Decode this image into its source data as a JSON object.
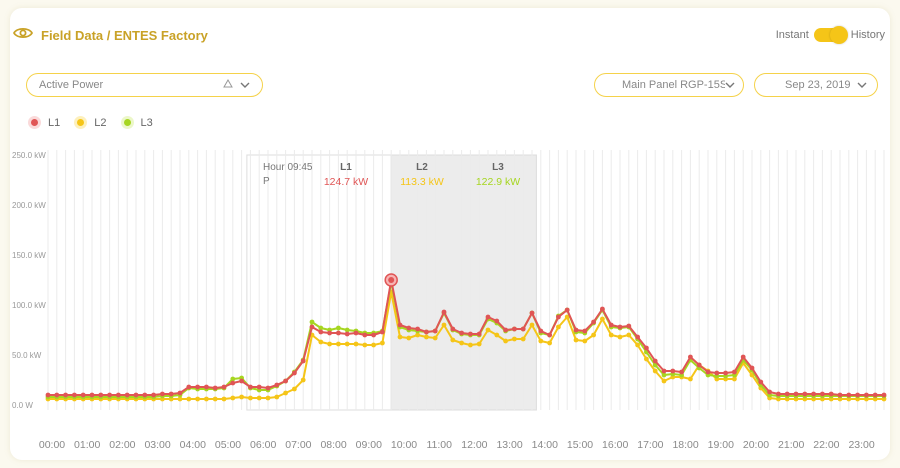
{
  "header": {
    "title": "Field Data / ENTES Factory",
    "toggle_left": "Instant",
    "toggle_right": "History"
  },
  "filters": {
    "measurement": "Active Power",
    "panel": "Main Panel RGP-15S",
    "date": "Sep 23, 2019"
  },
  "legend": [
    {
      "label": "L1",
      "color": "#e05555"
    },
    {
      "label": "L2",
      "color": "#f5c518"
    },
    {
      "label": "L3",
      "color": "#a6d620"
    }
  ],
  "tooltip": {
    "hour_label": "Hour 09:45",
    "row_label": "P",
    "cols": [
      {
        "name": "L1",
        "value": "124.7 kW",
        "color": "#e05555"
      },
      {
        "name": "L2",
        "value": "113.3 kW",
        "color": "#f5c518"
      },
      {
        "name": "L3",
        "value": "122.9 kW",
        "color": "#a6d620"
      }
    ]
  },
  "chart_data": {
    "type": "line",
    "y_tick_labels": [
      "0.0 W",
      "50.0 kW",
      "100.0 kW",
      "150.0 kW",
      "200.0 kW",
      "250.0 kW"
    ],
    "y_ticks": [
      0,
      50,
      100,
      150,
      200,
      250
    ],
    "ylim": [
      0,
      250
    ],
    "x_tick_labels": [
      "00:00",
      "01:00",
      "02:00",
      "03:00",
      "04:00",
      "05:00",
      "06:00",
      "07:00",
      "08:00",
      "09:00",
      "10:00",
      "11:00",
      "12:00",
      "13:00",
      "14:00",
      "15:00",
      "16:00",
      "17:00",
      "18:00",
      "19:00",
      "20:00",
      "21:00",
      "22:00",
      "23:00"
    ],
    "x_step_minutes": 15,
    "highlight_index": 39,
    "grid": true,
    "series": [
      {
        "name": "L1",
        "color": "#e05555",
        "values": [
          10,
          10,
          10,
          10,
          10,
          10,
          10,
          10,
          10,
          10,
          10,
          10,
          10,
          11,
          11,
          12,
          18,
          18,
          18,
          17,
          18,
          22,
          24,
          18,
          18,
          17,
          20,
          24,
          32,
          44,
          78,
          73,
          72,
          72,
          71,
          72,
          70,
          70,
          73,
          125,
          80,
          77,
          76,
          73,
          74,
          93,
          76,
          72,
          71,
          71,
          88,
          84,
          75,
          76,
          76,
          92,
          74,
          70,
          88,
          95,
          75,
          74,
          83,
          96,
          80,
          78,
          79,
          68,
          57,
          44,
          34,
          34,
          33,
          48,
          40,
          33,
          32,
          32,
          33,
          48,
          37,
          23,
          13,
          11,
          11,
          11,
          11,
          11,
          11,
          11,
          10,
          10,
          10,
          10,
          10,
          10
        ]
      },
      {
        "name": "L2",
        "color": "#f5c518",
        "values": [
          6,
          6,
          6,
          6,
          6,
          6,
          6,
          6,
          6,
          6,
          6,
          6,
          6,
          6,
          6,
          6,
          6,
          6,
          6,
          6,
          6,
          7,
          8,
          7,
          7,
          7,
          8,
          12,
          16,
          25,
          70,
          63,
          61,
          61,
          61,
          61,
          60,
          60,
          62,
          113,
          68,
          67,
          70,
          68,
          67,
          80,
          65,
          62,
          60,
          61,
          75,
          70,
          64,
          66,
          66,
          80,
          64,
          62,
          78,
          88,
          65,
          64,
          70,
          86,
          70,
          68,
          70,
          60,
          46,
          34,
          24,
          28,
          28,
          26,
          40,
          34,
          26,
          26,
          26,
          42,
          30,
          17,
          7,
          6,
          6,
          6,
          6,
          6,
          6,
          6,
          6,
          6,
          6,
          6,
          6,
          6
        ]
      },
      {
        "name": "L3",
        "color": "#a6d620",
        "values": [
          8,
          8,
          8,
          8,
          8,
          8,
          8,
          8,
          8,
          8,
          8,
          8,
          8,
          9,
          9,
          10,
          17,
          16,
          16,
          16,
          17,
          26,
          27,
          17,
          15,
          15,
          19,
          24,
          33,
          45,
          83,
          77,
          75,
          77,
          75,
          74,
          72,
          72,
          74,
          123,
          78,
          75,
          74,
          73,
          74,
          92,
          75,
          71,
          70,
          70,
          86,
          82,
          74,
          76,
          76,
          92,
          72,
          70,
          89,
          95,
          73,
          72,
          82,
          95,
          78,
          77,
          78,
          66,
          53,
          40,
          30,
          31,
          30,
          45,
          37,
          30,
          29,
          29,
          30,
          45,
          35,
          20,
          10,
          9,
          9,
          9,
          9,
          9,
          9,
          9,
          9,
          9,
          9,
          9,
          9,
          9
        ]
      }
    ]
  }
}
